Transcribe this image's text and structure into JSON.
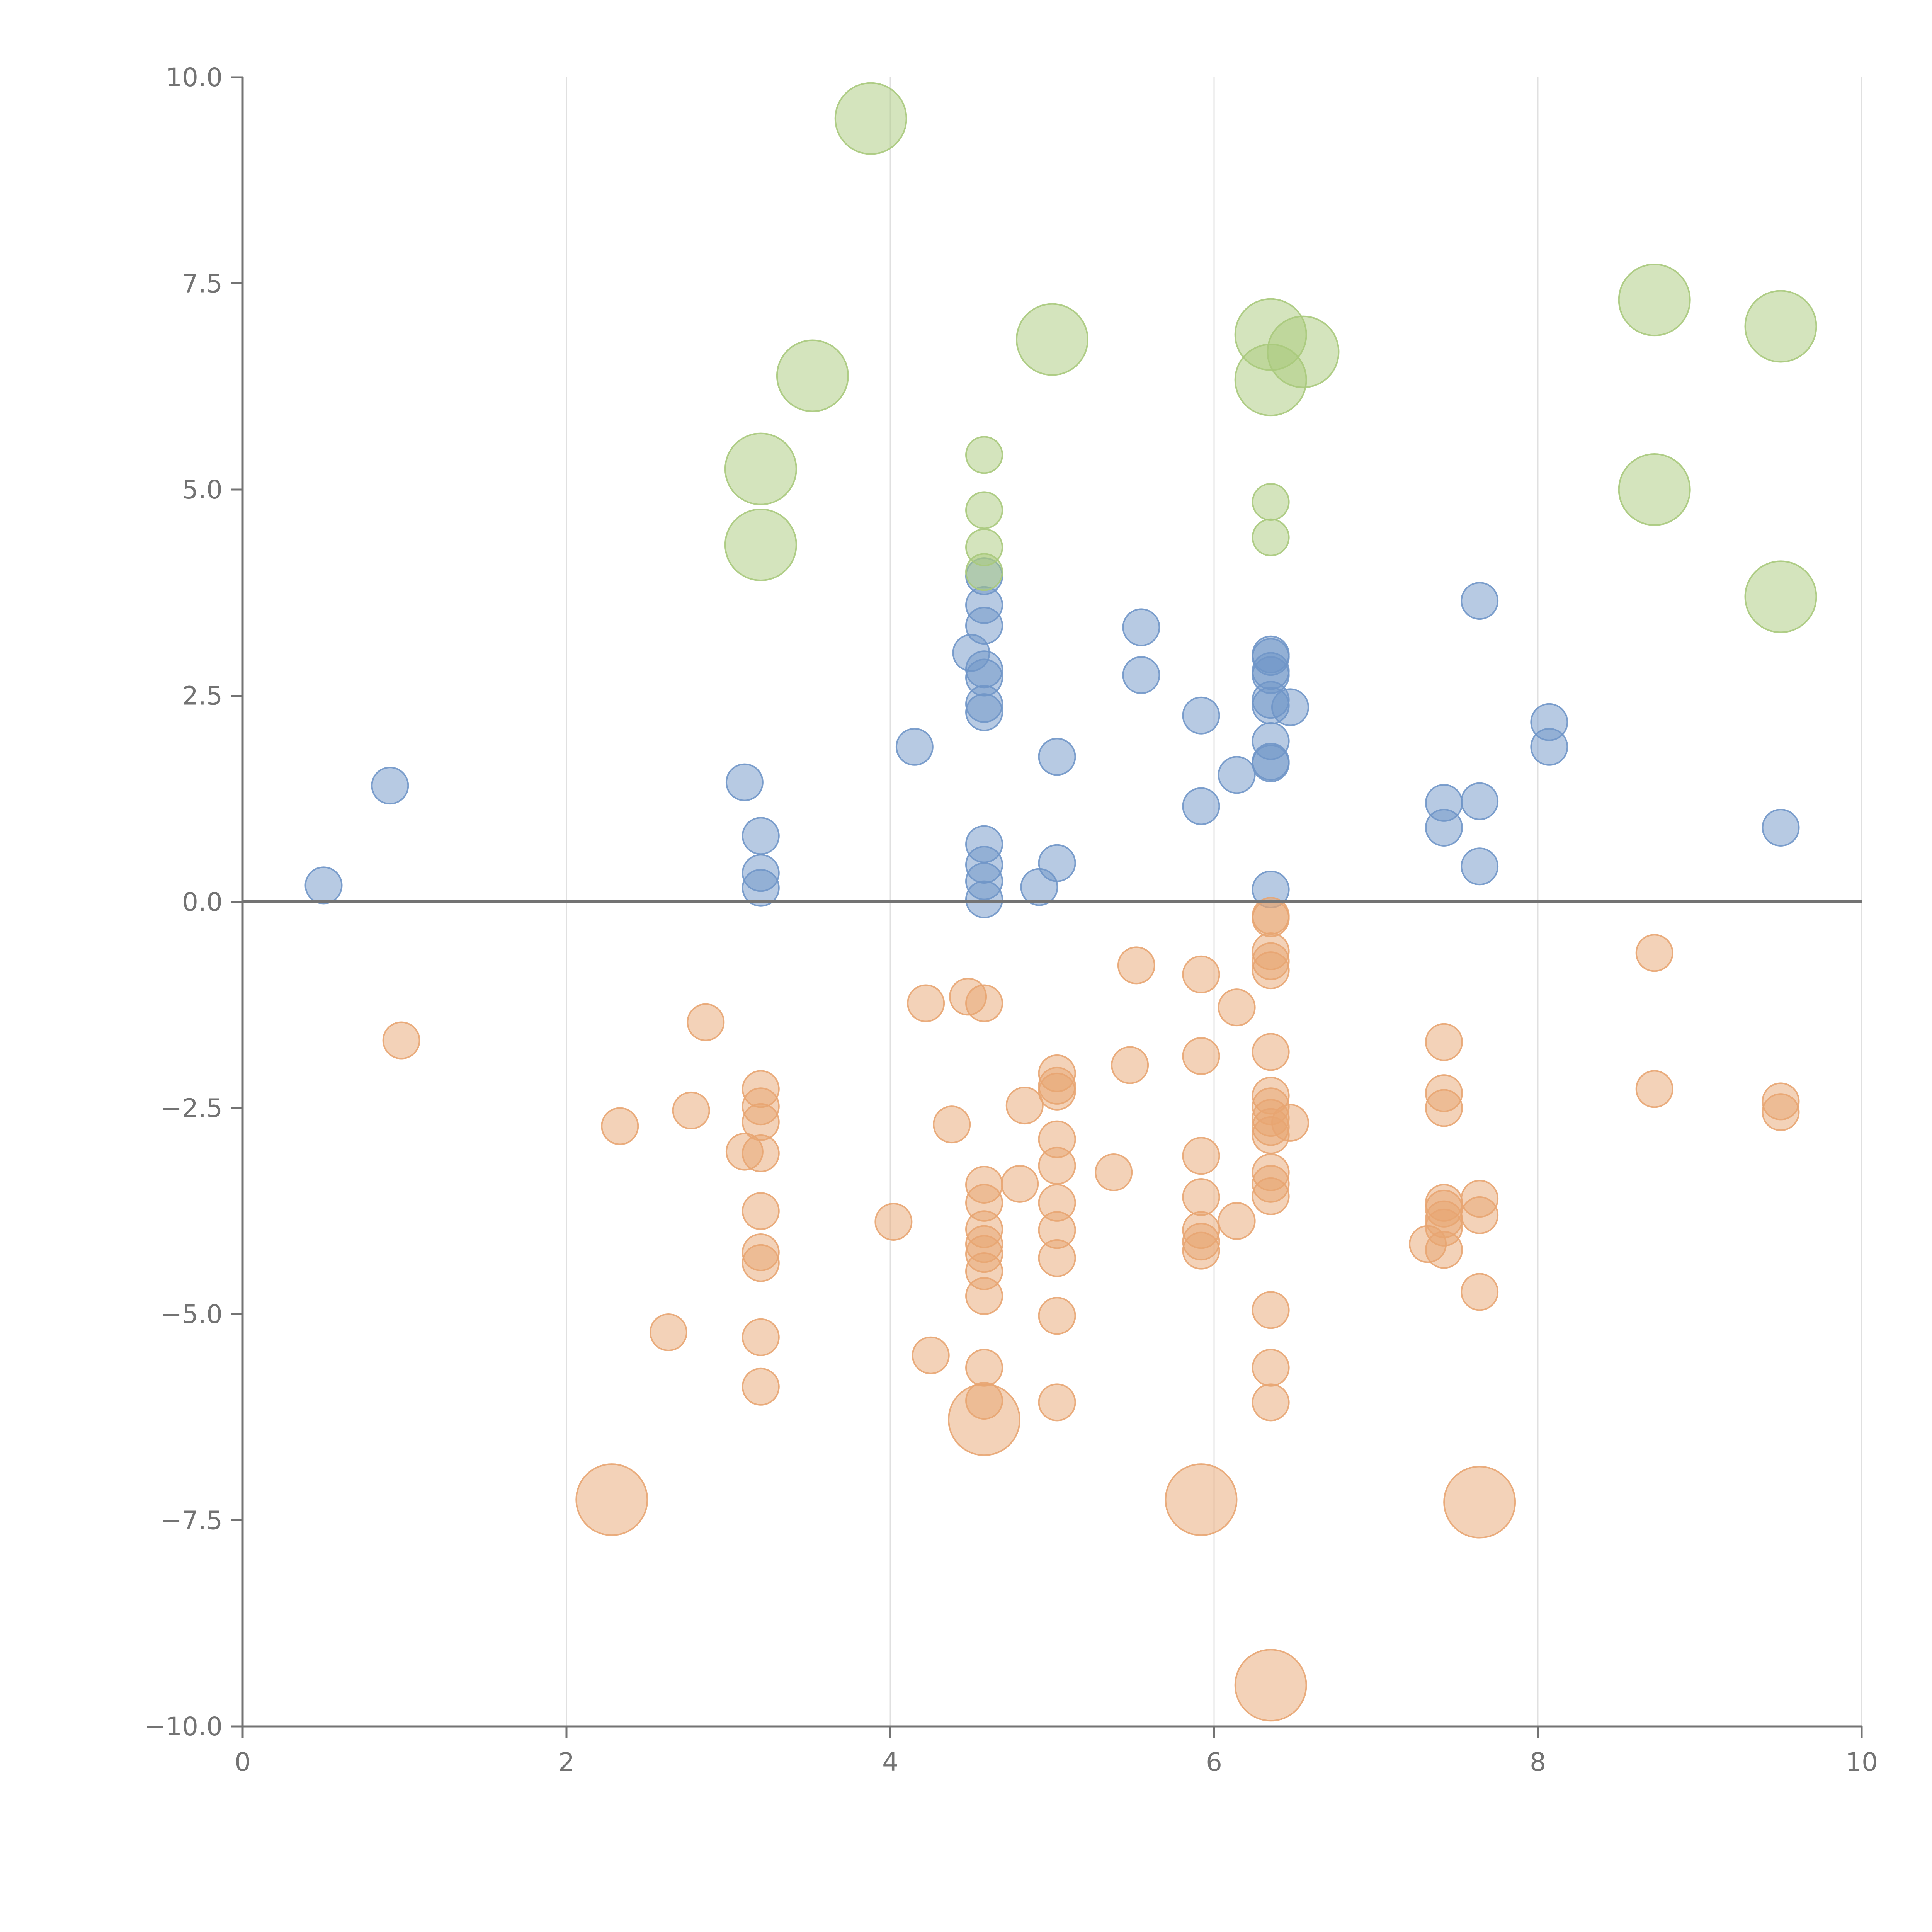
{
  "chart_data": {
    "type": "scatter",
    "title": "",
    "xlabel": "",
    "ylabel": "",
    "xlim": [
      0,
      10
    ],
    "ylim": [
      -10,
      10
    ],
    "x_ticks": [
      0,
      2,
      4,
      6,
      8,
      10
    ],
    "x_tick_labels": [
      "0",
      "2",
      "4",
      "6",
      "8",
      "10"
    ],
    "y_ticks": [
      -10,
      -7.5,
      -5,
      -2.5,
      0,
      2.5,
      5,
      7.5,
      10
    ],
    "y_tick_labels": [
      "−10.0",
      "−7.5",
      "−5.0",
      "−2.5",
      "0.0",
      "2.5",
      "5.0",
      "7.5",
      "10.0"
    ],
    "vertical_grid": true,
    "zero_line": true,
    "series": [
      {
        "name": "blue",
        "color": "#7096c8",
        "size": "small",
        "points": [
          [
            0.5,
            0.2
          ],
          [
            0.91,
            1.41
          ],
          [
            3.1,
            1.45
          ],
          [
            3.2,
            0.8
          ],
          [
            3.2,
            0.35
          ],
          [
            3.2,
            0.17
          ],
          [
            4.15,
            1.88
          ],
          [
            4.5,
            3.02
          ],
          [
            4.58,
            3.95
          ],
          [
            4.58,
            3.6
          ],
          [
            4.58,
            3.35
          ],
          [
            4.58,
            2.82
          ],
          [
            4.58,
            2.72
          ],
          [
            4.58,
            2.4
          ],
          [
            4.58,
            2.3
          ],
          [
            4.58,
            0.7
          ],
          [
            4.58,
            0.45
          ],
          [
            4.58,
            0.25
          ],
          [
            4.58,
            0.03
          ],
          [
            4.92,
            0.18
          ],
          [
            5.03,
            1.76
          ],
          [
            5.03,
            0.47
          ],
          [
            5.55,
            3.33
          ],
          [
            5.55,
            2.75
          ],
          [
            5.92,
            2.26
          ],
          [
            5.92,
            1.16
          ],
          [
            6.14,
            1.54
          ],
          [
            6.35,
            3.0
          ],
          [
            6.35,
            2.97
          ],
          [
            6.35,
            2.8
          ],
          [
            6.35,
            2.75
          ],
          [
            6.35,
            2.45
          ],
          [
            6.35,
            2.38
          ],
          [
            6.35,
            1.95
          ],
          [
            6.35,
            1.7
          ],
          [
            6.35,
            1.68
          ],
          [
            6.35,
            0.15
          ],
          [
            6.47,
            2.36
          ],
          [
            7.42,
            1.2
          ],
          [
            7.42,
            0.9
          ],
          [
            7.64,
            3.65
          ],
          [
            7.64,
            1.22
          ],
          [
            7.64,
            0.43
          ],
          [
            8.07,
            2.18
          ],
          [
            8.07,
            1.88
          ],
          [
            9.5,
            0.9
          ]
        ]
      },
      {
        "name": "orange",
        "color": "#e8a572",
        "size": "small",
        "points": [
          [
            0.98,
            -1.68
          ],
          [
            2.33,
            -2.72
          ],
          [
            2.63,
            -5.22
          ],
          [
            2.77,
            -2.53
          ],
          [
            2.86,
            -1.46
          ],
          [
            3.1,
            -3.03
          ],
          [
            3.2,
            -2.27
          ],
          [
            3.2,
            -2.48
          ],
          [
            3.2,
            -2.67
          ],
          [
            3.2,
            -3.05
          ],
          [
            3.2,
            -3.75
          ],
          [
            3.2,
            -4.25
          ],
          [
            3.2,
            -4.38
          ],
          [
            3.2,
            -5.28
          ],
          [
            3.2,
            -5.88
          ],
          [
            4.02,
            -3.88
          ],
          [
            4.22,
            -1.23
          ],
          [
            4.25,
            -5.5
          ],
          [
            4.38,
            -2.7
          ],
          [
            4.48,
            -1.15
          ],
          [
            4.58,
            -1.23
          ],
          [
            4.58,
            -3.43
          ],
          [
            4.58,
            -3.65
          ],
          [
            4.58,
            -3.97
          ],
          [
            4.58,
            -4.15
          ],
          [
            4.58,
            -4.27
          ],
          [
            4.58,
            -4.48
          ],
          [
            4.58,
            -4.78
          ],
          [
            4.58,
            -5.65
          ],
          [
            4.58,
            -6.05
          ],
          [
            4.8,
            -3.42
          ],
          [
            4.83,
            -2.47
          ],
          [
            5.03,
            -2.08
          ],
          [
            5.03,
            -2.23
          ],
          [
            5.03,
            -2.3
          ],
          [
            5.03,
            -2.88
          ],
          [
            5.03,
            -3.2
          ],
          [
            5.03,
            -3.65
          ],
          [
            5.03,
            -3.98
          ],
          [
            5.03,
            -4.32
          ],
          [
            5.03,
            -5.02
          ],
          [
            5.03,
            -6.07
          ],
          [
            5.38,
            -3.28
          ],
          [
            5.48,
            -1.98
          ],
          [
            5.52,
            -0.77
          ],
          [
            5.92,
            -0.88
          ],
          [
            5.92,
            -1.87
          ],
          [
            5.92,
            -3.08
          ],
          [
            5.92,
            -3.58
          ],
          [
            5.92,
            -3.98
          ],
          [
            5.92,
            -4.12
          ],
          [
            5.92,
            -4.23
          ],
          [
            6.14,
            -1.28
          ],
          [
            6.14,
            -3.87
          ],
          [
            6.35,
            -0.17
          ],
          [
            6.35,
            -0.2
          ],
          [
            6.35,
            -0.6
          ],
          [
            6.35,
            -0.72
          ],
          [
            6.35,
            -0.83
          ],
          [
            6.35,
            -1.82
          ],
          [
            6.35,
            -2.35
          ],
          [
            6.35,
            -2.48
          ],
          [
            6.35,
            -2.62
          ],
          [
            6.35,
            -2.73
          ],
          [
            6.35,
            -2.83
          ],
          [
            6.35,
            -3.28
          ],
          [
            6.35,
            -3.42
          ],
          [
            6.35,
            -3.57
          ],
          [
            6.35,
            -4.95
          ],
          [
            6.35,
            -5.65
          ],
          [
            6.35,
            -6.07
          ],
          [
            6.47,
            -2.68
          ],
          [
            7.32,
            -4.15
          ],
          [
            7.42,
            -1.7
          ],
          [
            7.42,
            -2.32
          ],
          [
            7.42,
            -2.5
          ],
          [
            7.42,
            -3.65
          ],
          [
            7.42,
            -3.72
          ],
          [
            7.42,
            -3.85
          ],
          [
            7.42,
            -3.95
          ],
          [
            7.42,
            -4.22
          ],
          [
            7.64,
            -3.6
          ],
          [
            7.64,
            -3.8
          ],
          [
            7.64,
            -4.73
          ],
          [
            8.72,
            -0.62
          ],
          [
            8.72,
            -2.27
          ],
          [
            9.5,
            -2.42
          ],
          [
            9.5,
            -2.55
          ]
        ]
      },
      {
        "name": "orange-large",
        "color": "#e8a572",
        "size": "large",
        "points": [
          [
            4.58,
            -6.28
          ],
          [
            2.28,
            -7.25
          ],
          [
            5.92,
            -7.25
          ],
          [
            7.64,
            -7.28
          ],
          [
            6.35,
            -9.5
          ]
        ]
      },
      {
        "name": "green",
        "color": "#a9c97c",
        "size": "small",
        "points": [
          [
            4.58,
            5.42
          ],
          [
            4.58,
            4.75
          ],
          [
            4.58,
            4.3
          ],
          [
            4.58,
            4.0
          ],
          [
            6.35,
            4.85
          ],
          [
            6.35,
            4.42
          ]
        ]
      },
      {
        "name": "green-large",
        "color": "#a9c97c",
        "size": "large",
        "points": [
          [
            3.88,
            9.5
          ],
          [
            3.2,
            5.25
          ],
          [
            3.2,
            4.33
          ],
          [
            3.52,
            6.38
          ],
          [
            5.0,
            6.82
          ],
          [
            6.35,
            6.88
          ],
          [
            6.35,
            6.33
          ],
          [
            6.55,
            6.67
          ],
          [
            8.72,
            7.3
          ],
          [
            8.72,
            5.0
          ],
          [
            9.5,
            6.98
          ],
          [
            9.5,
            3.7
          ]
        ]
      }
    ]
  }
}
